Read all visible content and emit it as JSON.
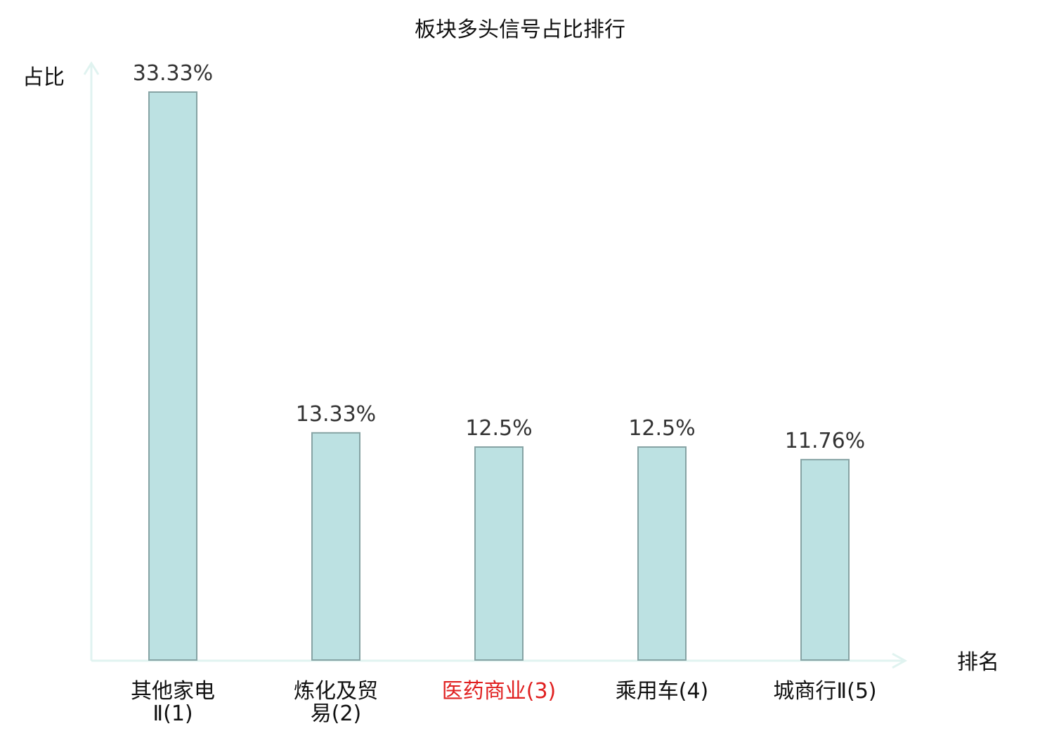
{
  "chart_data": {
    "type": "bar",
    "title": "板块多头信号占比排行",
    "xlabel": "排名",
    "ylabel": "占比",
    "categories": [
      "其他家电Ⅱ(1)",
      "炼化及贸易(2)",
      "医药商业(3)",
      "乘用车(4)",
      "城商行Ⅱ(5)"
    ],
    "category_lines": [
      [
        "其他家电",
        "Ⅱ(1)"
      ],
      [
        "炼化及贸",
        "易(2)"
      ],
      [
        "医药商业(3)"
      ],
      [
        "乘用车(4)"
      ],
      [
        "城商行Ⅱ(5)"
      ]
    ],
    "highlight_index": 2,
    "values": [
      33.33,
      13.33,
      12.5,
      12.5,
      11.76
    ],
    "value_labels": [
      "33.33%",
      "13.33%",
      "12.5%",
      "12.5%",
      "11.76%"
    ],
    "ylim": [
      0,
      33.33
    ],
    "grid": false,
    "legend": "none",
    "colors": {
      "bar_fill": "#bce1e2",
      "bar_stroke": "#86a3a4",
      "axis": "#e0f3f0",
      "highlight_label": "#e02020",
      "label": "#111111",
      "value_label": "#333333"
    }
  }
}
